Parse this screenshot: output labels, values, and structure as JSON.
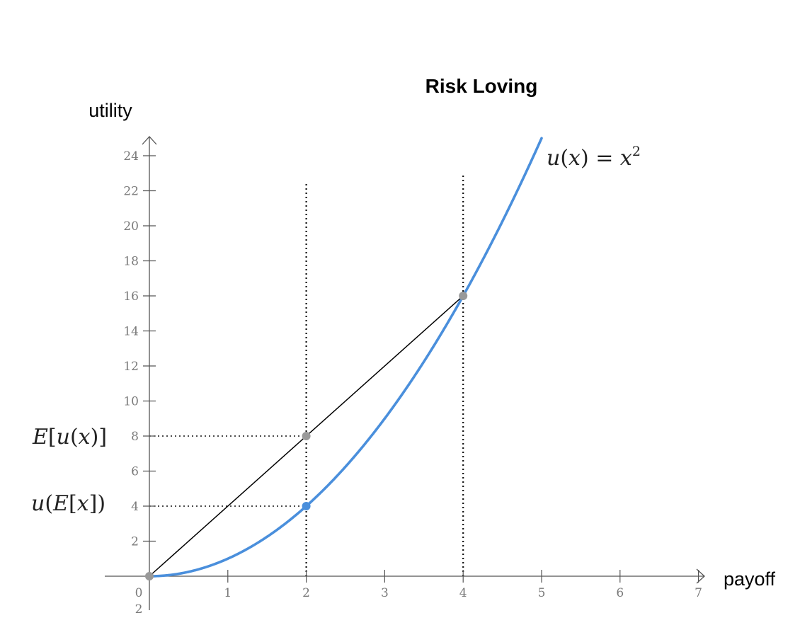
{
  "chart_data": {
    "type": "line",
    "title": "Risk Loving",
    "xlabel": "payoff",
    "ylabel": "utility",
    "xlim": [
      -0.55,
      7.0
    ],
    "ylim": [
      -0.9,
      25
    ],
    "x_ticks": [
      "0",
      "1",
      "2",
      "3",
      "4",
      "5",
      "6",
      "7"
    ],
    "y_ticks": [
      "2",
      "4",
      "6",
      "8",
      "10",
      "12",
      "14",
      "16",
      "18",
      "20",
      "22",
      "24"
    ],
    "y_tick_partial": "2",
    "series": [
      {
        "kind": "curve",
        "function": "x^2",
        "x_range": [
          0,
          5
        ],
        "color": "#4a8fdc"
      },
      {
        "kind": "segment",
        "points": [
          [
            0,
            0
          ],
          [
            4,
            16
          ]
        ],
        "color": "#000000"
      }
    ],
    "points": [
      {
        "x": 0,
        "y": 0,
        "color": "#999999"
      },
      {
        "x": 2,
        "y": 8,
        "color": "#999999"
      },
      {
        "x": 4,
        "y": 16,
        "color": "#999999"
      },
      {
        "x": 2,
        "y": 4,
        "color": "#4a8fdc"
      }
    ],
    "reference_lines": [
      {
        "orientation": "vertical",
        "x": 2,
        "y_range": [
          0,
          22.4
        ]
      },
      {
        "orientation": "vertical",
        "x": 4,
        "y_range": [
          0,
          23
        ]
      },
      {
        "orientation": "horizontal",
        "y": 8,
        "x_range": [
          0,
          2
        ]
      },
      {
        "orientation": "horizontal",
        "y": 4,
        "x_range": [
          0,
          2
        ]
      }
    ],
    "annotations": {
      "curve_label": {
        "u": "u",
        "open": "(",
        "x": "x",
        "close": ")",
        "equals": " = ",
        "base": "x",
        "exp": "2"
      },
      "expected_utility": {
        "E": "E",
        "open": "[",
        "u": "u",
        "paren_open": "(",
        "x": "x",
        "paren_close": ")",
        "close": "]"
      },
      "utility_of_expectation": {
        "u": "u",
        "open": "(",
        "E": "E",
        "bracket_open": "[",
        "x": "x",
        "bracket_close": "]",
        "close": ")"
      }
    },
    "grid": false,
    "legend": "none"
  }
}
